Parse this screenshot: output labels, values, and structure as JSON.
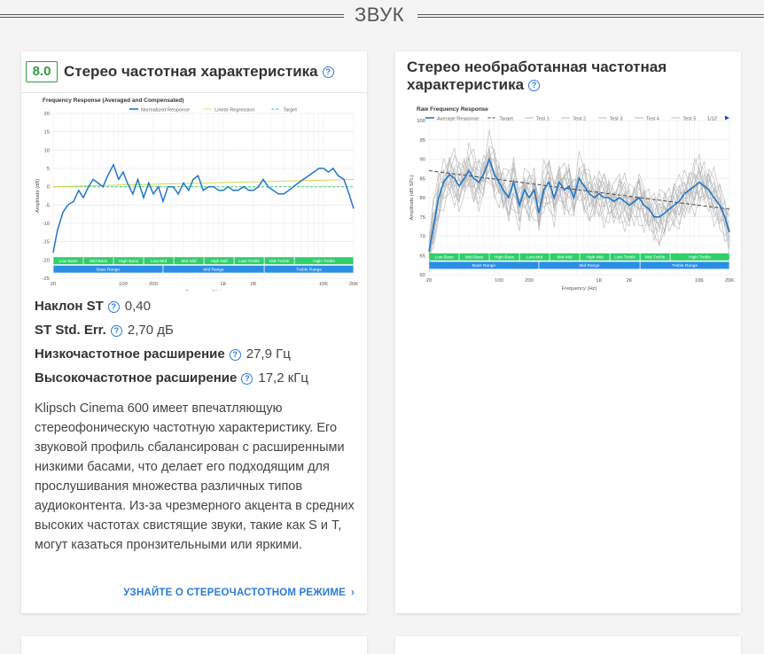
{
  "section": {
    "title": "ЗВУК"
  },
  "card1": {
    "score": "8.0",
    "title": "Стерео частотная характеристика",
    "stats": [
      {
        "label": "Наклон ST",
        "value": "0,40"
      },
      {
        "label": "ST Std. Err.",
        "value": "2,70 дБ"
      },
      {
        "label": "Низкочастотное расширение",
        "value": "27,9 Гц"
      },
      {
        "label": "Высокочастотное расширение",
        "value": "17,2 кГц"
      }
    ],
    "description": "Klipsch Cinema 600 имеет впечатляющую стереофоническую частотную характеристику. Его звуковой профиль сбалансирован с расширенными низкими басами, что делает его подходящим для прослушивания множества различных типов аудиоконтента. Из-за чрезмерного акцента в средних высоких частотах свистящие звуки, такие как S и T, могут казаться пронзительными или яркими.",
    "link": "УЗНАЙТЕ О СТЕРЕОЧАСТОТНОМ РЕЖИМЕ"
  },
  "card2": {
    "title": "Стерео необработанная частотная характеристика"
  },
  "chart_data": [
    {
      "type": "line",
      "title": "Frequency Response (Averaged and Compensated)",
      "xlabel": "Frequency (Hz)",
      "ylabel": "Amplitude (dB)",
      "xscale": "log",
      "xlim": [
        20,
        20000
      ],
      "ylim": [
        -25,
        20
      ],
      "x_ticks": [
        "20",
        "100",
        "200",
        "1K",
        "2K",
        "10K",
        "20K"
      ],
      "y_ticks": [
        "20",
        "15",
        "10",
        "5",
        "0",
        "-5",
        "-10",
        "-15",
        "-20",
        "-25"
      ],
      "legend": [
        "Normalized Response",
        "Linear Regression",
        "Target"
      ],
      "band_labels_top": [
        "Low-Bass",
        "Mid-Bass",
        "High-Bass",
        "Low-Mid",
        "Mid-Mid",
        "High-Mid",
        "Low-Treble",
        "Mid-Treble",
        "High-Treble"
      ],
      "band_labels_bottom": [
        "Bass Range",
        "Mid Range",
        "Treble Range"
      ],
      "series": [
        {
          "name": "Normalized Response",
          "x": [
            20,
            22,
            25,
            28,
            32,
            36,
            40,
            45,
            50,
            56,
            63,
            70,
            80,
            90,
            100,
            110,
            125,
            140,
            160,
            180,
            200,
            225,
            250,
            280,
            315,
            355,
            400,
            450,
            500,
            560,
            630,
            710,
            800,
            900,
            1000,
            1120,
            1250,
            1400,
            1600,
            1800,
            2000,
            2240,
            2500,
            2800,
            3150,
            3550,
            4000,
            4500,
            5000,
            5600,
            6300,
            7100,
            8000,
            9000,
            10000,
            11200,
            12500,
            14000,
            16000,
            18000,
            20000
          ],
          "y": [
            -18,
            -12,
            -7,
            -5,
            -4,
            -1,
            -3,
            0,
            2,
            1,
            0,
            3,
            6,
            2,
            4,
            1,
            -2,
            2,
            -3,
            1,
            -2,
            0,
            -4,
            0,
            0,
            -2,
            1,
            -1,
            2,
            3,
            -1,
            0,
            0,
            -1,
            -1,
            0,
            -1,
            -1,
            0,
            -1,
            -1,
            0,
            2,
            0,
            -1,
            -2,
            -2,
            -1,
            0,
            1,
            2,
            3,
            4,
            5,
            5,
            4,
            5,
            3,
            2,
            -2,
            -6
          ]
        },
        {
          "name": "Linear Regression",
          "x": [
            20,
            20000
          ],
          "y": [
            0,
            2
          ]
        },
        {
          "name": "Target",
          "x": [
            20,
            20000
          ],
          "y": [
            0,
            0
          ]
        }
      ]
    },
    {
      "type": "line",
      "title": "Raw Frequency Response",
      "xlabel": "Frequency (Hz)",
      "ylabel": "Amplitude (dB SPL)",
      "xscale": "log",
      "xlim": [
        20,
        20000
      ],
      "ylim": [
        60,
        100
      ],
      "x_ticks": [
        "20",
        "100",
        "200",
        "1K",
        "2K",
        "10K",
        "20K"
      ],
      "y_ticks": [
        "100",
        "95",
        "90",
        "85",
        "80",
        "75",
        "70",
        "65",
        "60"
      ],
      "legend": [
        "Average Response",
        "Target",
        "Test 1",
        "Test 2",
        "Test 3",
        "Test 4",
        "Test 5"
      ],
      "legend_page": "1/12",
      "band_labels_top": [
        "Low-Bass",
        "Mid-Bass",
        "High-Bass",
        "Low-Mid",
        "Mid-Mid",
        "High-Mid",
        "Low-Treble",
        "Mid-Treble",
        "High-Treble"
      ],
      "band_labels_bottom": [
        "Bass Range",
        "Mid Range",
        "Treble Range"
      ],
      "series": [
        {
          "name": "Average Response",
          "x": [
            20,
            22,
            25,
            28,
            32,
            36,
            40,
            45,
            50,
            56,
            63,
            70,
            80,
            90,
            100,
            110,
            125,
            140,
            160,
            180,
            200,
            225,
            250,
            280,
            315,
            355,
            400,
            450,
            500,
            560,
            630,
            710,
            800,
            900,
            1000,
            1120,
            1250,
            1400,
            1600,
            1800,
            2000,
            2240,
            2500,
            2800,
            3150,
            3550,
            4000,
            4500,
            5000,
            5600,
            6300,
            7100,
            8000,
            9000,
            10000,
            11200,
            12500,
            14000,
            16000,
            18000,
            20000
          ],
          "y": [
            66,
            72,
            80,
            84,
            86,
            85,
            83,
            85,
            87,
            85,
            84,
            86,
            90,
            86,
            84,
            82,
            80,
            84,
            78,
            82,
            80,
            82,
            76,
            82,
            84,
            80,
            84,
            82,
            83,
            80,
            85,
            83,
            81,
            80,
            81,
            80,
            80,
            79,
            80,
            79,
            78,
            79,
            80,
            78,
            77,
            75,
            75,
            76,
            77,
            78,
            79,
            81,
            82,
            83,
            84,
            83,
            82,
            80,
            78,
            75,
            71
          ]
        },
        {
          "name": "Target",
          "x": [
            20,
            20000
          ],
          "y": [
            87,
            77
          ]
        }
      ]
    }
  ]
}
